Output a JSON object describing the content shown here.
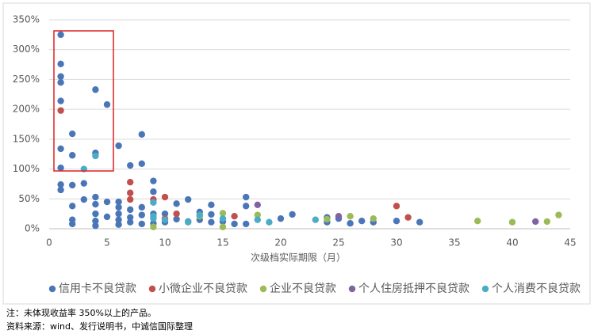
{
  "chart_data": {
    "type": "scatter",
    "x_label": "次级档实际期限（月）",
    "xlim": [
      0,
      45
    ],
    "xticks": [
      0,
      5,
      10,
      15,
      20,
      25,
      30,
      35,
      40,
      45
    ],
    "ylim": [
      0,
      350
    ],
    "yticks": [
      {
        "value": 0,
        "label": "0%"
      },
      {
        "value": 50,
        "label": "50%"
      },
      {
        "value": 100,
        "label": "100%"
      },
      {
        "value": 150,
        "label": "150%"
      },
      {
        "value": 200,
        "label": "200%"
      },
      {
        "value": 250,
        "label": "250%"
      },
      {
        "value": 300,
        "label": "300%"
      },
      {
        "value": 350,
        "label": "350%"
      }
    ],
    "grid": true,
    "legend": "bottom",
    "series": [
      {
        "name": "信用卡不良贷款",
        "color": "#4a76b8",
        "x": [
          1,
          1,
          1,
          1,
          1,
          1,
          1,
          1,
          1,
          2,
          2,
          2,
          2,
          2,
          2,
          3,
          3,
          4,
          4,
          4,
          4,
          4,
          4,
          4,
          5,
          5,
          5,
          6,
          6,
          6,
          6,
          6,
          6,
          7,
          7,
          7,
          7,
          8,
          8,
          8,
          8,
          8,
          9,
          9,
          9,
          9,
          10,
          10,
          11,
          11,
          12,
          12,
          13,
          13,
          14,
          14,
          14,
          15,
          16,
          17,
          17,
          17,
          20,
          21,
          24,
          24,
          25,
          26,
          27,
          28,
          30,
          32
        ],
        "values": [
          325,
          276,
          255,
          245,
          214,
          134,
          102,
          74,
          65,
          159,
          123,
          73,
          38,
          15,
          8,
          76,
          49,
          233,
          127,
          53,
          41,
          25,
          13,
          5,
          208,
          45,
          20,
          139,
          45,
          36,
          25,
          15,
          7,
          106,
          32,
          19,
          11,
          158,
          109,
          36,
          23,
          8,
          80,
          62,
          25,
          9,
          25,
          11,
          42,
          16,
          49,
          12,
          28,
          15,
          40,
          24,
          11,
          12,
          8,
          53,
          38,
          8,
          17,
          24,
          19,
          11,
          17,
          9,
          13,
          11,
          13,
          11
        ]
      },
      {
        "name": "小微企业不良贷款",
        "color": "#c0504d",
        "x": [
          1,
          7,
          7,
          7,
          9,
          10,
          10,
          11,
          16,
          30,
          31
        ],
        "values": [
          198,
          78,
          60,
          49,
          49,
          53,
          17,
          25,
          21,
          38,
          19
        ]
      },
      {
        "name": "企业不良贷款",
        "color": "#9bbb59",
        "x": [
          9,
          13,
          15,
          15,
          18,
          24,
          26,
          28,
          37,
          40,
          43,
          44
        ],
        "values": [
          3,
          21,
          26,
          3,
          23,
          16,
          21,
          17,
          13,
          11,
          12,
          23
        ]
      },
      {
        "name": "个人住房抵押不良贷款",
        "color": "#8064a2",
        "x": [
          18,
          25,
          42
        ],
        "values": [
          40,
          21,
          12
        ]
      },
      {
        "name": "个人消费不良贷款",
        "color": "#4bacc6",
        "x": [
          3,
          4,
          9,
          9,
          9,
          10,
          12,
          13,
          15,
          18,
          19,
          23
        ],
        "values": [
          100,
          122,
          44,
          21,
          17,
          15,
          11,
          23,
          17,
          15,
          11,
          15
        ]
      }
    ]
  },
  "notes": [
    "注：未体现收益率 350%以上的产品。",
    "资料来源：wind、发行说明书，中诚信国际整理"
  ]
}
